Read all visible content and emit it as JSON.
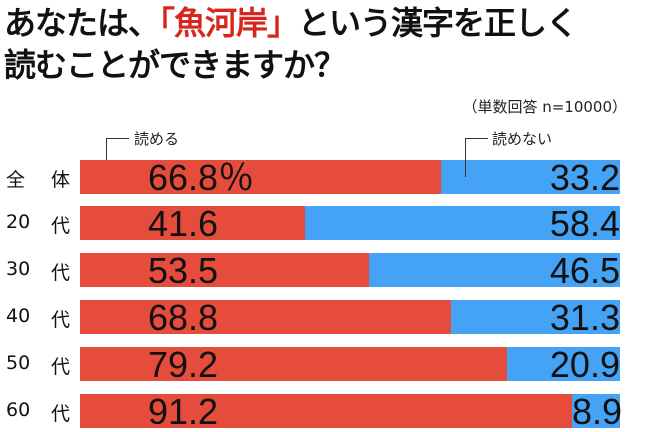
{
  "title": {
    "line1_pre": "あなたは、",
    "line1_highlight": "「魚河岸」",
    "line1_post": "という漢字を正しく",
    "line2": "読むことができますか？"
  },
  "note": "（単数回答 n=10000）",
  "chart_data": {
    "type": "bar",
    "stacked": true,
    "orientation": "horizontal",
    "categories": [
      "全　体",
      "20　代",
      "30　代",
      "40　代",
      "50　代",
      "60　代"
    ],
    "category_parts": [
      [
        "全",
        "体"
      ],
      [
        "20",
        "代"
      ],
      [
        "30",
        "代"
      ],
      [
        "40",
        "代"
      ],
      [
        "50",
        "代"
      ],
      [
        "60",
        "代"
      ]
    ],
    "series": [
      {
        "name": "読める",
        "color": "#e64c3c",
        "values": [
          66.8,
          41.6,
          53.5,
          68.8,
          79.2,
          91.2
        ],
        "labels": [
          "66.8％",
          "41.6",
          "53.5",
          "68.8",
          "79.2",
          "91.2"
        ]
      },
      {
        "name": "読めない",
        "color": "#45a3f5",
        "values": [
          33.2,
          58.4,
          46.5,
          31.3,
          20.9,
          8.9
        ],
        "labels": [
          "33.2",
          "58.4",
          "46.5",
          "31.3",
          "20.9",
          "8.9"
        ]
      }
    ],
    "unit": "%",
    "xlim": [
      0,
      100
    ]
  }
}
